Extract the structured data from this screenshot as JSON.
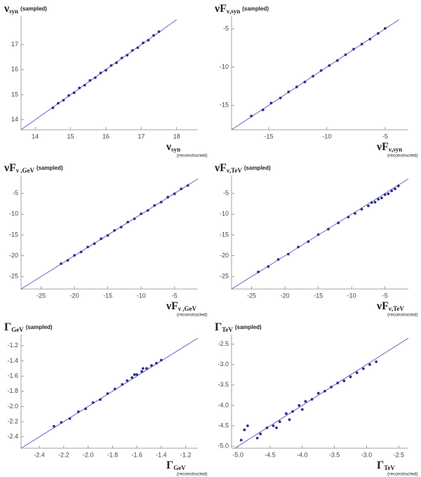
{
  "chart_data": [
    {
      "type": "scatter",
      "y_label": {
        "symbol": "ν",
        "sub": "syn",
        "note": "(sampled)"
      },
      "x_label": {
        "symbol": "ν",
        "sub": "syn",
        "note": "(reconstructed)"
      },
      "xlim": [
        13.6,
        18.6
      ],
      "ylim": [
        13.6,
        18.0
      ],
      "xticks": [
        14,
        15,
        16,
        17,
        18
      ],
      "yticks": [
        14,
        15,
        16,
        17
      ],
      "color": "#2e2e8f",
      "line_color": "#5a5ab8",
      "x": [
        14.5,
        14.65,
        14.8,
        14.95,
        15.1,
        15.25,
        15.4,
        15.55,
        15.7,
        15.85,
        16.0,
        16.15,
        16.3,
        16.45,
        16.6,
        16.75,
        16.9,
        17.05,
        17.2,
        17.35,
        17.5
      ],
      "values": [
        14.48,
        14.66,
        14.78,
        14.97,
        15.08,
        15.27,
        15.38,
        15.57,
        15.68,
        15.87,
        15.98,
        16.17,
        16.28,
        16.47,
        16.58,
        16.77,
        16.88,
        17.07,
        17.18,
        17.37,
        17.52
      ]
    },
    {
      "type": "scatter",
      "y_label": {
        "symbol": "νF",
        "sub": "ν,syn",
        "note": "(sampled)"
      },
      "x_label": {
        "symbol": "νF",
        "sub": "ν,syn",
        "note": "(reconstructed)"
      },
      "xlim": [
        -18.2,
        -3.0
      ],
      "ylim": [
        -18.2,
        -3.8
      ],
      "xticks": [
        -15,
        -10,
        -5
      ],
      "yticks": [
        -15,
        -10,
        -5
      ],
      "color": "#2e2e8f",
      "line_color": "#5a5ab8",
      "x": [
        -16.5,
        -15.5,
        -14.8,
        -14.0,
        -13.3,
        -12.6,
        -11.9,
        -11.2,
        -10.5,
        -9.8,
        -9.1,
        -8.4,
        -7.7,
        -7.0,
        -6.3,
        -5.6,
        -5.0
      ],
      "values": [
        -16.4,
        -15.6,
        -14.7,
        -14.05,
        -13.25,
        -12.6,
        -11.95,
        -11.2,
        -10.45,
        -9.8,
        -9.15,
        -8.4,
        -7.65,
        -7.0,
        -6.35,
        -5.6,
        -4.95
      ]
    },
    {
      "type": "scatter",
      "y_label": {
        "symbol": "νF",
        "sub": "ν ,GeV",
        "note": "(sampled)"
      },
      "x_label": {
        "symbol": "νF",
        "sub": "ν ,GeV",
        "note": "(reconstructed)"
      },
      "xlim": [
        -28,
        -1.5
      ],
      "ylim": [
        -28,
        -1.5
      ],
      "xticks": [
        -25,
        -20,
        -15,
        -10,
        -5
      ],
      "yticks": [
        -25,
        -20,
        -15,
        -10,
        -5
      ],
      "color": "#2e2e8f",
      "line_color": "#5a5ab8",
      "x": [
        -22.0,
        -21.0,
        -20.0,
        -19.0,
        -18.0,
        -17.0,
        -16.0,
        -15.0,
        -14.0,
        -13.0,
        -12.0,
        -11.0,
        -10.0,
        -9.0,
        -8.0,
        -7.0,
        -6.0,
        -5.0,
        -4.0,
        -3.0
      ],
      "values": [
        -21.9,
        -21.1,
        -19.9,
        -19.1,
        -17.9,
        -17.1,
        -15.9,
        -15.1,
        -13.9,
        -13.1,
        -11.9,
        -11.1,
        -9.9,
        -9.1,
        -7.9,
        -7.1,
        -5.9,
        -5.1,
        -3.9,
        -3.1
      ]
    },
    {
      "type": "scatter",
      "y_label": {
        "symbol": "νF",
        "sub": "ν,TeV",
        "note": "(sampled)"
      },
      "x_label": {
        "symbol": "νF",
        "sub": "ν,TeV",
        "note": "(reconstructed)"
      },
      "xlim": [
        -28,
        -1.5
      ],
      "ylim": [
        -28,
        -1.5
      ],
      "xticks": [
        -25,
        -20,
        -15,
        -10,
        -5
      ],
      "yticks": [
        -25,
        -20,
        -15,
        -10,
        -5
      ],
      "color": "#2e2e8f",
      "line_color": "#5a5ab8",
      "x": [
        -24.0,
        -22.5,
        -21.0,
        -19.5,
        -18.0,
        -16.5,
        -15.0,
        -13.5,
        -12.0,
        -10.5,
        -9.5,
        -8.5,
        -7.5,
        -7.0,
        -6.5,
        -6.0,
        -5.5,
        -5.0,
        -4.5,
        -4.0,
        -3.5,
        -3.0
      ],
      "values": [
        -23.9,
        -22.6,
        -20.9,
        -19.6,
        -17.9,
        -16.6,
        -14.9,
        -13.6,
        -12.1,
        -10.7,
        -9.8,
        -8.8,
        -8.0,
        -7.2,
        -7.1,
        -6.4,
        -6.1,
        -5.3,
        -5.1,
        -4.4,
        -3.9,
        -3.2
      ]
    },
    {
      "type": "scatter",
      "y_label": {
        "symbol": "Γ",
        "sub": "GeV",
        "note": "(sampled)"
      },
      "x_label": {
        "symbol": "Γ",
        "sub": "GeV",
        "note": "(reconstructed)"
      },
      "xlim": [
        -2.55,
        -1.1
      ],
      "ylim": [
        -2.55,
        -1.1
      ],
      "xticks": [
        -2.4,
        -2.2,
        {
          "value": -2,
          "label": "-2.0"
        },
        -1.8,
        -1.6,
        -1.4,
        -1.2
      ],
      "yticks": [
        -2.4,
        -2.2,
        {
          "value": -2,
          "label": "-2.0"
        },
        -1.8,
        -1.6,
        -1.4,
        -1.2
      ],
      "color": "#2e2e8f",
      "line_color": "#5a5ab8",
      "x": [
        -2.28,
        -2.22,
        -2.15,
        -2.08,
        -2.02,
        -1.96,
        -1.9,
        -1.84,
        -1.78,
        -1.72,
        -1.68,
        -1.64,
        -1.6,
        -1.56,
        -1.52,
        -1.48,
        -1.44,
        -1.4,
        -1.62,
        -1.55
      ],
      "values": [
        -2.26,
        -2.21,
        -2.16,
        -2.07,
        -2.03,
        -1.95,
        -1.91,
        -1.83,
        -1.77,
        -1.71,
        -1.66,
        -1.62,
        -1.58,
        -1.54,
        -1.5,
        -1.46,
        -1.43,
        -1.39,
        -1.58,
        -1.5
      ]
    },
    {
      "type": "scatter",
      "y_label": {
        "symbol": "Γ",
        "sub": "TeV",
        "note": "(sampled)"
      },
      "x_label": {
        "symbol": "Γ",
        "sub": "TeV",
        "note": "(reconstructed)"
      },
      "xlim": [
        -5.1,
        -2.35
      ],
      "ylim": [
        -5.05,
        -2.35
      ],
      "xticks": [
        {
          "value": -5,
          "label": "-5.0"
        },
        -4.5,
        {
          "value": -4,
          "label": "-4.0"
        },
        -3.5,
        {
          "value": -3,
          "label": "-3.0"
        },
        -2.5
      ],
      "yticks": [
        {
          "value": -5,
          "label": "-5.0"
        },
        -4.5,
        {
          "value": -4,
          "label": "-4.0"
        },
        -3.5,
        {
          "value": -3,
          "label": "-3.0"
        },
        -2.5
      ],
      "color": "#2e2e8f",
      "line_color": "#5a5ab8",
      "x": [
        -4.95,
        -4.9,
        -4.85,
        -4.7,
        -4.65,
        -4.55,
        -4.45,
        -4.35,
        -4.25,
        -4.15,
        -4.05,
        -3.95,
        -3.85,
        -3.75,
        -3.65,
        -3.55,
        -3.45,
        -3.35,
        -3.25,
        -3.15,
        -3.05,
        -2.95,
        -2.85,
        -4.4,
        -4.2,
        -4.0
      ],
      "values": [
        -4.85,
        -4.6,
        -4.5,
        -4.8,
        -4.7,
        -4.55,
        -4.5,
        -4.4,
        -4.2,
        -4.15,
        -4.0,
        -3.9,
        -3.85,
        -3.7,
        -3.65,
        -3.55,
        -3.45,
        -3.4,
        -3.3,
        -3.2,
        -3.1,
        -3.0,
        -2.93,
        -4.55,
        -4.35,
        -4.1
      ]
    }
  ]
}
